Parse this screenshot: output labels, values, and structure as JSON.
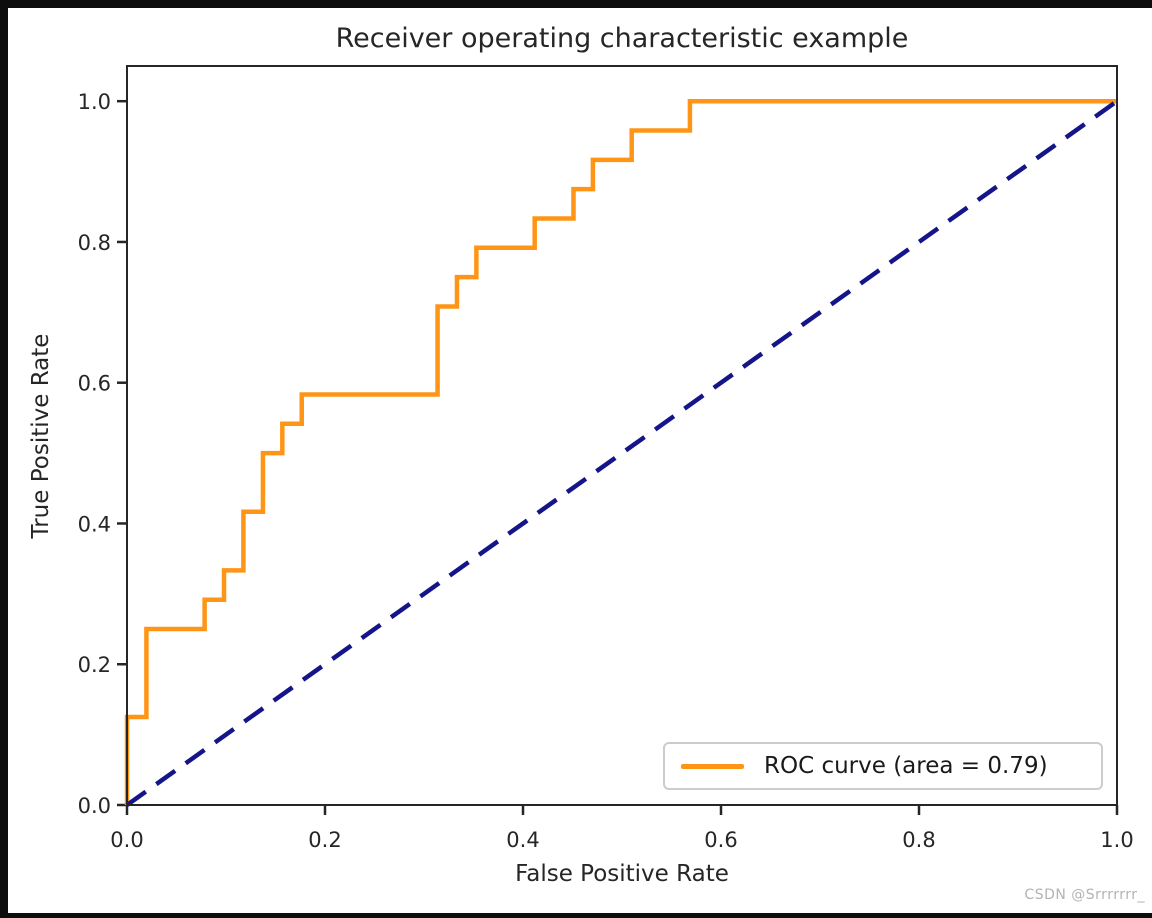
{
  "figure": {
    "frame_color": "#0d0d0d",
    "background_color": "#ffffff",
    "axis_color": "#262626"
  },
  "watermark": {
    "text": "CSDN @Srrrrrrr_",
    "color": "#b3b3b3"
  },
  "chart_data": {
    "type": "line",
    "title": "Receiver operating characteristic example",
    "xlabel": "False Positive Rate",
    "ylabel": "True Positive Rate",
    "xlim": [
      0.0,
      1.0
    ],
    "ylim": [
      0.0,
      1.05
    ],
    "x_tick_labels": [
      "0.0",
      "0.2",
      "0.4",
      "0.6",
      "0.8",
      "1.0"
    ],
    "y_tick_labels": [
      "0.0",
      "0.2",
      "0.4",
      "0.6",
      "0.8",
      "1.0"
    ],
    "grid": false,
    "auc": 0.79,
    "legend": {
      "position": "lower right",
      "label": "ROC curve (area = 0.79)"
    },
    "series": [
      {
        "name": "ROC curve",
        "style": "solid",
        "color": "#ff9517",
        "line_width": 4.5,
        "x": [
          0.0,
          0.0,
          0.0196,
          0.0196,
          0.0784,
          0.0784,
          0.098,
          0.098,
          0.1176,
          0.1176,
          0.1373,
          0.1373,
          0.1569,
          0.1569,
          0.1765,
          0.1765,
          0.3137,
          0.3137,
          0.3333,
          0.3333,
          0.3529,
          0.3529,
          0.4118,
          0.4118,
          0.451,
          0.451,
          0.4706,
          0.4706,
          0.5098,
          0.5098,
          0.5686,
          0.5686,
          1.0
        ],
        "y": [
          0.0,
          0.125,
          0.125,
          0.25,
          0.25,
          0.2917,
          0.2917,
          0.3333,
          0.3333,
          0.4167,
          0.4167,
          0.5,
          0.5,
          0.5417,
          0.5417,
          0.5833,
          0.5833,
          0.7083,
          0.7083,
          0.75,
          0.75,
          0.7917,
          0.7917,
          0.8333,
          0.8333,
          0.875,
          0.875,
          0.9167,
          0.9167,
          0.9583,
          0.9583,
          1.0,
          1.0
        ]
      },
      {
        "name": "chance diagonal",
        "style": "dashed",
        "color": "#15158a",
        "line_width": 4.5,
        "x": [
          0.0,
          1.0
        ],
        "y": [
          0.0,
          1.0
        ]
      }
    ]
  }
}
